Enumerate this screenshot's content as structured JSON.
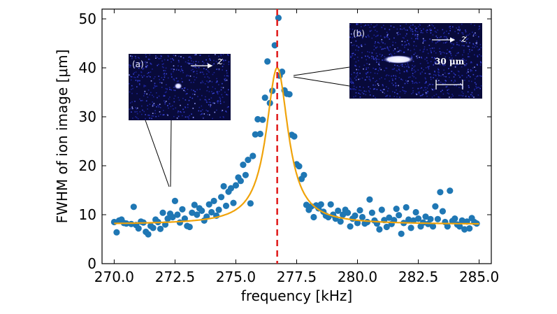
{
  "chart_data": {
    "type": "scatter",
    "xlabel": "frequency [kHz]",
    "ylabel": "FWHM of ion image [μm]",
    "xlim": [
      269.5,
      285.5
    ],
    "ylim": [
      0,
      52
    ],
    "xticks": [
      "270.0",
      "272.5",
      "275.0",
      "277.5",
      "280.0",
      "282.5",
      "285.0"
    ],
    "yticks": [
      "0",
      "10",
      "20",
      "30",
      "40",
      "50"
    ],
    "grid": false,
    "series": [
      {
        "role": "measured",
        "marker": "circle",
        "color": "#1f77b4",
        "points": [
          [
            270.0,
            8.5
          ],
          [
            270.1,
            6.4
          ],
          [
            270.2,
            8.8
          ],
          [
            270.3,
            9.0
          ],
          [
            270.4,
            8.3
          ],
          [
            270.5,
            8.2
          ],
          [
            270.7,
            8.1
          ],
          [
            270.8,
            11.6
          ],
          [
            270.9,
            7.9
          ],
          [
            271.0,
            7.2
          ],
          [
            271.1,
            8.6
          ],
          [
            271.2,
            8.4
          ],
          [
            271.3,
            6.5
          ],
          [
            271.4,
            6.0
          ],
          [
            271.5,
            7.7
          ],
          [
            271.6,
            7.3
          ],
          [
            271.7,
            9.0
          ],
          [
            271.8,
            8.5
          ],
          [
            271.9,
            7.1
          ],
          [
            272.0,
            10.4
          ],
          [
            272.1,
            8.0
          ],
          [
            272.2,
            9.2
          ],
          [
            272.3,
            10.2
          ],
          [
            272.4,
            9.5
          ],
          [
            272.5,
            12.8
          ],
          [
            272.6,
            10.0
          ],
          [
            272.7,
            8.4
          ],
          [
            272.8,
            11.1
          ],
          [
            272.9,
            9.2
          ],
          [
            273.0,
            7.7
          ],
          [
            273.1,
            7.5
          ],
          [
            273.2,
            10.4
          ],
          [
            273.3,
            12.0
          ],
          [
            273.4,
            10.0
          ],
          [
            273.5,
            11.3
          ],
          [
            273.6,
            10.8
          ],
          [
            273.7,
            8.8
          ],
          [
            273.8,
            9.6
          ],
          [
            273.9,
            12.1
          ],
          [
            274.0,
            10.5
          ],
          [
            274.1,
            12.8
          ],
          [
            274.2,
            9.8
          ],
          [
            274.3,
            11.0
          ],
          [
            274.4,
            13.6
          ],
          [
            274.5,
            15.8
          ],
          [
            274.6,
            11.8
          ],
          [
            274.7,
            14.7
          ],
          [
            274.8,
            15.4
          ],
          [
            274.9,
            12.4
          ],
          [
            275.0,
            16.0
          ],
          [
            275.1,
            17.6
          ],
          [
            275.2,
            16.9
          ],
          [
            275.3,
            20.2
          ],
          [
            275.4,
            18.1
          ],
          [
            275.5,
            21.2
          ],
          [
            275.6,
            12.3
          ],
          [
            275.7,
            22.0
          ],
          [
            275.8,
            26.4
          ],
          [
            275.9,
            29.5
          ],
          [
            276.0,
            26.5
          ],
          [
            276.1,
            29.4
          ],
          [
            276.2,
            33.9
          ],
          [
            276.3,
            41.3
          ],
          [
            276.4,
            32.8
          ],
          [
            276.5,
            35.3
          ],
          [
            276.6,
            44.6
          ],
          [
            276.75,
            50.2
          ],
          [
            276.8,
            38.4
          ],
          [
            276.9,
            39.2
          ],
          [
            277.0,
            35.4
          ],
          [
            277.1,
            34.7
          ],
          [
            277.2,
            34.6
          ],
          [
            277.3,
            26.3
          ],
          [
            277.4,
            26.0
          ],
          [
            277.5,
            20.3
          ],
          [
            277.6,
            19.9
          ],
          [
            277.7,
            17.3
          ],
          [
            277.8,
            18.1
          ],
          [
            277.9,
            12.0
          ],
          [
            278.0,
            11.0
          ],
          [
            278.1,
            11.7
          ],
          [
            278.2,
            9.5
          ],
          [
            278.3,
            11.9
          ],
          [
            278.4,
            11.3
          ],
          [
            278.5,
            12.1
          ],
          [
            278.6,
            10.6
          ],
          [
            278.7,
            9.8
          ],
          [
            278.8,
            9.5
          ],
          [
            278.9,
            12.1
          ],
          [
            279.0,
            10.0
          ],
          [
            279.1,
            9.2
          ],
          [
            279.2,
            10.8
          ],
          [
            279.3,
            8.6
          ],
          [
            279.4,
            10.0
          ],
          [
            279.5,
            11.0
          ],
          [
            279.6,
            10.4
          ],
          [
            279.7,
            7.6
          ],
          [
            279.8,
            9.2
          ],
          [
            279.9,
            9.8
          ],
          [
            280.0,
            8.3
          ],
          [
            280.1,
            10.9
          ],
          [
            280.2,
            9.5
          ],
          [
            280.3,
            8.2
          ],
          [
            280.4,
            8.5
          ],
          [
            280.5,
            13.1
          ],
          [
            280.6,
            10.4
          ],
          [
            280.7,
            8.8
          ],
          [
            280.8,
            8.2
          ],
          [
            280.9,
            7.0
          ],
          [
            281.0,
            11.0
          ],
          [
            281.1,
            8.9
          ],
          [
            281.2,
            7.5
          ],
          [
            281.3,
            9.4
          ],
          [
            281.4,
            8.1
          ],
          [
            281.5,
            8.9
          ],
          [
            281.6,
            11.2
          ],
          [
            281.7,
            9.9
          ],
          [
            281.8,
            6.1
          ],
          [
            281.9,
            8.3
          ],
          [
            282.0,
            11.5
          ],
          [
            282.1,
            9.0
          ],
          [
            282.2,
            7.3
          ],
          [
            282.3,
            8.8
          ],
          [
            282.4,
            10.5
          ],
          [
            282.5,
            9.2
          ],
          [
            282.6,
            7.6
          ],
          [
            282.7,
            8.4
          ],
          [
            282.8,
            9.6
          ],
          [
            282.9,
            8.1
          ],
          [
            283.0,
            9.1
          ],
          [
            283.1,
            7.6
          ],
          [
            283.2,
            11.7
          ],
          [
            283.3,
            9.1
          ],
          [
            283.4,
            14.6
          ],
          [
            283.5,
            10.7
          ],
          [
            283.6,
            8.5
          ],
          [
            283.7,
            7.6
          ],
          [
            283.8,
            14.9
          ],
          [
            283.9,
            8.7
          ],
          [
            284.0,
            9.2
          ],
          [
            284.1,
            8.0
          ],
          [
            284.2,
            7.6
          ],
          [
            284.3,
            8.8
          ],
          [
            284.4,
            7.0
          ],
          [
            284.5,
            8.6
          ],
          [
            284.6,
            7.2
          ],
          [
            284.7,
            9.3
          ],
          [
            284.8,
            8.5
          ],
          [
            284.9,
            8.2
          ]
        ]
      },
      {
        "role": "fit",
        "type": "line",
        "color": "#f0a30a",
        "model": {
          "center": 276.7,
          "amplitude": 32.0,
          "hwhm": 0.55,
          "baseline": 8.0
        }
      }
    ],
    "reference_line": {
      "x": 276.7,
      "color": "#e02020",
      "style": "dashed"
    },
    "insets": [
      {
        "label": "(a)",
        "axis_symbol": "z",
        "points_to": [
          272.2,
          14.5
        ]
      },
      {
        "label": "(b)",
        "axis_symbol": "z",
        "scale_text": "30 μm",
        "points_to": [
          277.2,
          38.5
        ]
      }
    ]
  },
  "colors": {
    "points": "#1f77b4",
    "fit": "#f0a30a",
    "reference": "#e02020",
    "inset_bg": "#080a3a"
  }
}
